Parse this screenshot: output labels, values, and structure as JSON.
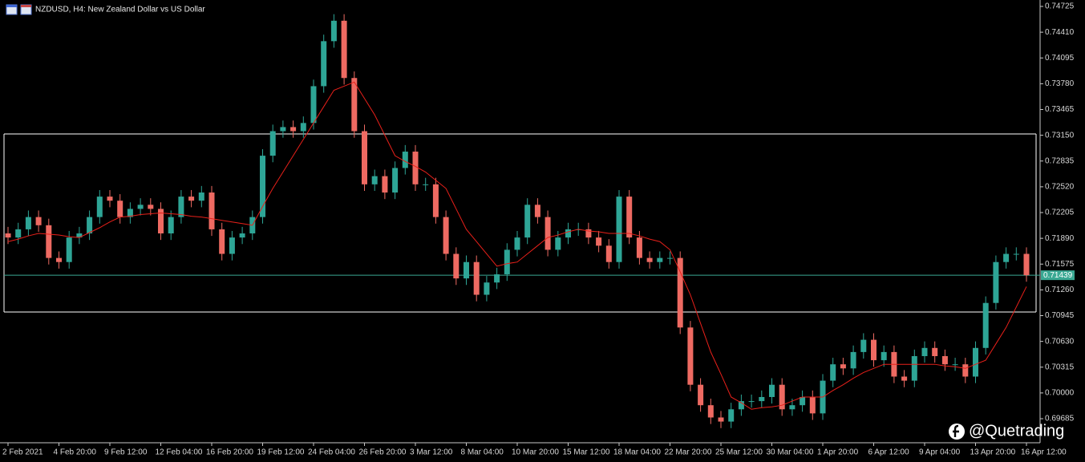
{
  "chart_data": {
    "type": "candlestick",
    "title": "NZDUSD, H4:  New Zealand Dollar vs US Dollar",
    "watermark": "@Quetrading",
    "up_color": "#2ea596",
    "down_color": "#ee6a62",
    "ma_color": "#e8201a",
    "zone_color": "#ffffff",
    "last_price_color": "#3aa893",
    "categories": [
      "2 Feb 2021",
      null,
      null,
      null,
      null,
      "4 Feb 20:00",
      null,
      null,
      null,
      null,
      "9 Feb 12:00",
      null,
      null,
      null,
      null,
      "12 Feb 04:00",
      null,
      null,
      null,
      null,
      "16 Feb 20:00",
      null,
      null,
      null,
      null,
      "19 Feb 12:00",
      null,
      null,
      null,
      null,
      "24 Feb 04:00",
      null,
      null,
      null,
      null,
      "26 Feb 20:00",
      null,
      null,
      null,
      null,
      "3 Mar 12:00",
      null,
      null,
      null,
      null,
      "8 Mar 04:00",
      null,
      null,
      null,
      null,
      "10 Mar 20:00",
      null,
      null,
      null,
      null,
      "15 Mar 12:00",
      null,
      null,
      null,
      null,
      "18 Mar 04:00",
      null,
      null,
      null,
      null,
      "22 Mar 20:00",
      null,
      null,
      null,
      null,
      "25 Mar 12:00",
      null,
      null,
      null,
      null,
      "30 Mar 04:00",
      null,
      null,
      null,
      null,
      "1 Apr 20:00",
      null,
      null,
      null,
      null,
      "6 Apr 12:00",
      null,
      null,
      null,
      null,
      "9 Apr 04:00",
      null,
      null,
      null,
      null,
      "13 Apr 20:00",
      null,
      null,
      null,
      null,
      "16 Apr 12:00"
    ],
    "open": [
      0.7195,
      0.719,
      0.72,
      0.7215,
      0.7205,
      0.7165,
      0.716,
      0.719,
      0.7195,
      0.7215,
      0.724,
      0.7235,
      0.7215,
      0.7225,
      0.723,
      0.7225,
      0.7195,
      0.7215,
      0.724,
      0.7235,
      0.7245,
      0.72,
      0.717,
      0.719,
      0.7195,
      0.7215,
      0.729,
      0.732,
      0.7325,
      0.732,
      0.733,
      0.7375,
      0.743,
      0.7455,
      0.7385,
      0.732,
      0.7255,
      0.7265,
      0.7245,
      0.7275,
      0.7295,
      0.7255,
      0.7255,
      0.7215,
      0.717,
      0.714,
      0.716,
      0.712,
      0.7135,
      0.7145,
      0.7175,
      0.719,
      0.723,
      0.7215,
      0.7175,
      0.719,
      0.72,
      0.72,
      0.719,
      0.718,
      0.716,
      0.724,
      0.719,
      0.7165,
      0.716,
      0.7165,
      0.7165,
      0.708,
      0.701,
      0.6985,
      0.697,
      0.6965,
      0.698,
      0.699,
      0.699,
      0.6995,
      0.701,
      0.698,
      0.6985,
      0.6995,
      0.6975,
      0.7015,
      0.7035,
      0.703,
      0.705,
      0.7065,
      0.704,
      0.705,
      0.702,
      0.7015,
      0.7045,
      0.7055,
      0.7045,
      0.7035,
      0.7035,
      0.702,
      0.7055,
      0.711,
      0.716,
      0.717,
      0.717
    ],
    "high": [
      0.7203,
      0.7208,
      0.7223,
      0.7223,
      0.7213,
      0.7173,
      0.7198,
      0.7203,
      0.7223,
      0.7248,
      0.7248,
      0.7243,
      0.7233,
      0.7238,
      0.7238,
      0.7233,
      0.7223,
      0.7248,
      0.7248,
      0.7253,
      0.7253,
      0.7208,
      0.7198,
      0.7203,
      0.7223,
      0.7298,
      0.7328,
      0.7333,
      0.7333,
      0.7338,
      0.7383,
      0.7438,
      0.7463,
      0.7463,
      0.7393,
      0.7328,
      0.7273,
      0.7273,
      0.7283,
      0.7303,
      0.7303,
      0.7263,
      0.7263,
      0.7223,
      0.7178,
      0.7168,
      0.7168,
      0.7143,
      0.7153,
      0.7183,
      0.7198,
      0.7238,
      0.7238,
      0.7223,
      0.7198,
      0.7208,
      0.7208,
      0.7208,
      0.7198,
      0.7188,
      0.7248,
      0.7248,
      0.7198,
      0.7173,
      0.7173,
      0.7173,
      0.7173,
      0.7088,
      0.7018,
      0.6993,
      0.6978,
      0.6988,
      0.6998,
      0.6998,
      0.7003,
      0.7018,
      0.7018,
      0.6993,
      0.7003,
      0.7003,
      0.7023,
      0.7043,
      0.7043,
      0.7058,
      0.7073,
      0.7073,
      0.7058,
      0.7058,
      0.7028,
      0.7053,
      0.7063,
      0.7063,
      0.7053,
      0.7043,
      0.7043,
      0.7063,
      0.7118,
      0.7168,
      0.7178,
      0.7178,
      0.7178
    ],
    "low": [
      0.7182,
      0.7182,
      0.7192,
      0.7197,
      0.7157,
      0.7152,
      0.7152,
      0.7182,
      0.7187,
      0.7207,
      0.7227,
      0.7207,
      0.7207,
      0.7217,
      0.7217,
      0.7187,
      0.7187,
      0.7207,
      0.7227,
      0.7227,
      0.7192,
      0.7162,
      0.7162,
      0.7182,
      0.7187,
      0.7207,
      0.7282,
      0.7312,
      0.7312,
      0.7312,
      0.7322,
      0.7367,
      0.7422,
      0.7377,
      0.7312,
      0.7247,
      0.7247,
      0.7237,
      0.7237,
      0.7267,
      0.7247,
      0.7247,
      0.7207,
      0.7162,
      0.7132,
      0.7132,
      0.7112,
      0.7112,
      0.7127,
      0.7137,
      0.7167,
      0.7182,
      0.7207,
      0.7167,
      0.7167,
      0.7182,
      0.7192,
      0.7182,
      0.7172,
      0.7152,
      0.7152,
      0.7182,
      0.7157,
      0.7152,
      0.7152,
      0.7157,
      0.7072,
      0.7002,
      0.6977,
      0.6962,
      0.6957,
      0.6957,
      0.6972,
      0.6982,
      0.6982,
      0.6987,
      0.6972,
      0.6972,
      0.6977,
      0.6967,
      0.6967,
      0.7007,
      0.7022,
      0.7022,
      0.7042,
      0.7032,
      0.7032,
      0.7012,
      0.7007,
      0.7007,
      0.7037,
      0.7037,
      0.7027,
      0.7027,
      0.7012,
      0.7012,
      0.7047,
      0.7102,
      0.7152,
      0.7162,
      0.71359
    ],
    "close": [
      0.719,
      0.72,
      0.7215,
      0.7205,
      0.7165,
      0.716,
      0.719,
      0.7195,
      0.7215,
      0.724,
      0.7235,
      0.7215,
      0.7225,
      0.723,
      0.7225,
      0.7195,
      0.7215,
      0.724,
      0.7235,
      0.7245,
      0.72,
      0.717,
      0.719,
      0.7195,
      0.7215,
      0.729,
      0.732,
      0.7325,
      0.732,
      0.733,
      0.7375,
      0.743,
      0.7455,
      0.7385,
      0.732,
      0.7255,
      0.7265,
      0.7245,
      0.7275,
      0.7295,
      0.7255,
      0.7255,
      0.7215,
      0.717,
      0.714,
      0.716,
      0.712,
      0.7135,
      0.7145,
      0.7175,
      0.719,
      0.723,
      0.7215,
      0.7175,
      0.719,
      0.72,
      0.72,
      0.719,
      0.718,
      0.716,
      0.724,
      0.719,
      0.7165,
      0.716,
      0.7165,
      0.7165,
      0.708,
      0.701,
      0.6985,
      0.697,
      0.6965,
      0.698,
      0.699,
      0.699,
      0.6995,
      0.701,
      0.698,
      0.6985,
      0.6995,
      0.6975,
      0.7015,
      0.7035,
      0.703,
      0.705,
      0.7065,
      0.704,
      0.705,
      0.702,
      0.7015,
      0.7045,
      0.7055,
      0.7045,
      0.7035,
      0.7035,
      0.702,
      0.7055,
      0.711,
      0.716,
      0.717,
      0.717,
      0.71439
    ],
    "ma": [
      0.7185,
      0.7188,
      0.7192,
      0.7195,
      0.7194,
      0.7193,
      0.7191,
      0.719,
      0.7196,
      0.7202,
      0.7209,
      0.7215,
      0.7216,
      0.7218,
      0.7219,
      0.722,
      0.7219,
      0.7218,
      0.7216,
      0.7215,
      0.7213,
      0.7211,
      0.7209,
      0.7207,
      0.7205,
      0.7228,
      0.725,
      0.727,
      0.729,
      0.731,
      0.733,
      0.735,
      0.737,
      0.7375,
      0.738,
      0.736,
      0.734,
      0.7315,
      0.729,
      0.7283,
      0.7277,
      0.727,
      0.726,
      0.725,
      0.7225,
      0.72,
      0.7185,
      0.717,
      0.7155,
      0.7158,
      0.716,
      0.717,
      0.718,
      0.719,
      0.7193,
      0.7197,
      0.72,
      0.7198,
      0.7197,
      0.7195,
      0.7195,
      0.7195,
      0.7192,
      0.7188,
      0.7185,
      0.7175,
      0.7148,
      0.712,
      0.7085,
      0.705,
      0.7023,
      0.6995,
      0.6988,
      0.698,
      0.6982,
      0.6983,
      0.6985,
      0.699,
      0.6995,
      0.6995,
      0.6995,
      0.7003,
      0.701,
      0.7018,
      0.7025,
      0.703,
      0.7035,
      0.7035,
      0.7035,
      0.7035,
      0.7035,
      0.7035,
      0.7033,
      0.7032,
      0.703,
      0.7035,
      0.704,
      0.706,
      0.708,
      0.7105,
      0.713
    ],
    "zone": [
      0.73166,
      0.70989
    ],
    "last_price": 0.71439,
    "ylim": [
      0.69391,
      0.74774
    ],
    "yticks": [
      0.74725,
      {
        "value": 0.7441,
        "label": "0.74410"
      },
      0.74095,
      {
        "value": 0.7378,
        "label": "0.73780"
      },
      0.73465,
      {
        "value": 0.7315,
        "label": "0.73150"
      },
      0.72835,
      {
        "value": 0.7252,
        "label": "0.72520"
      },
      0.72205,
      {
        "value": 0.7189,
        "label": "0.71890"
      },
      0.71575,
      {
        "value": 0.7126,
        "label": "0.71260"
      },
      0.70945,
      {
        "value": 0.7063,
        "label": "0.70630"
      },
      0.70315,
      {
        "value": 0.7,
        "label": "0.70000"
      },
      0.69685
    ]
  }
}
